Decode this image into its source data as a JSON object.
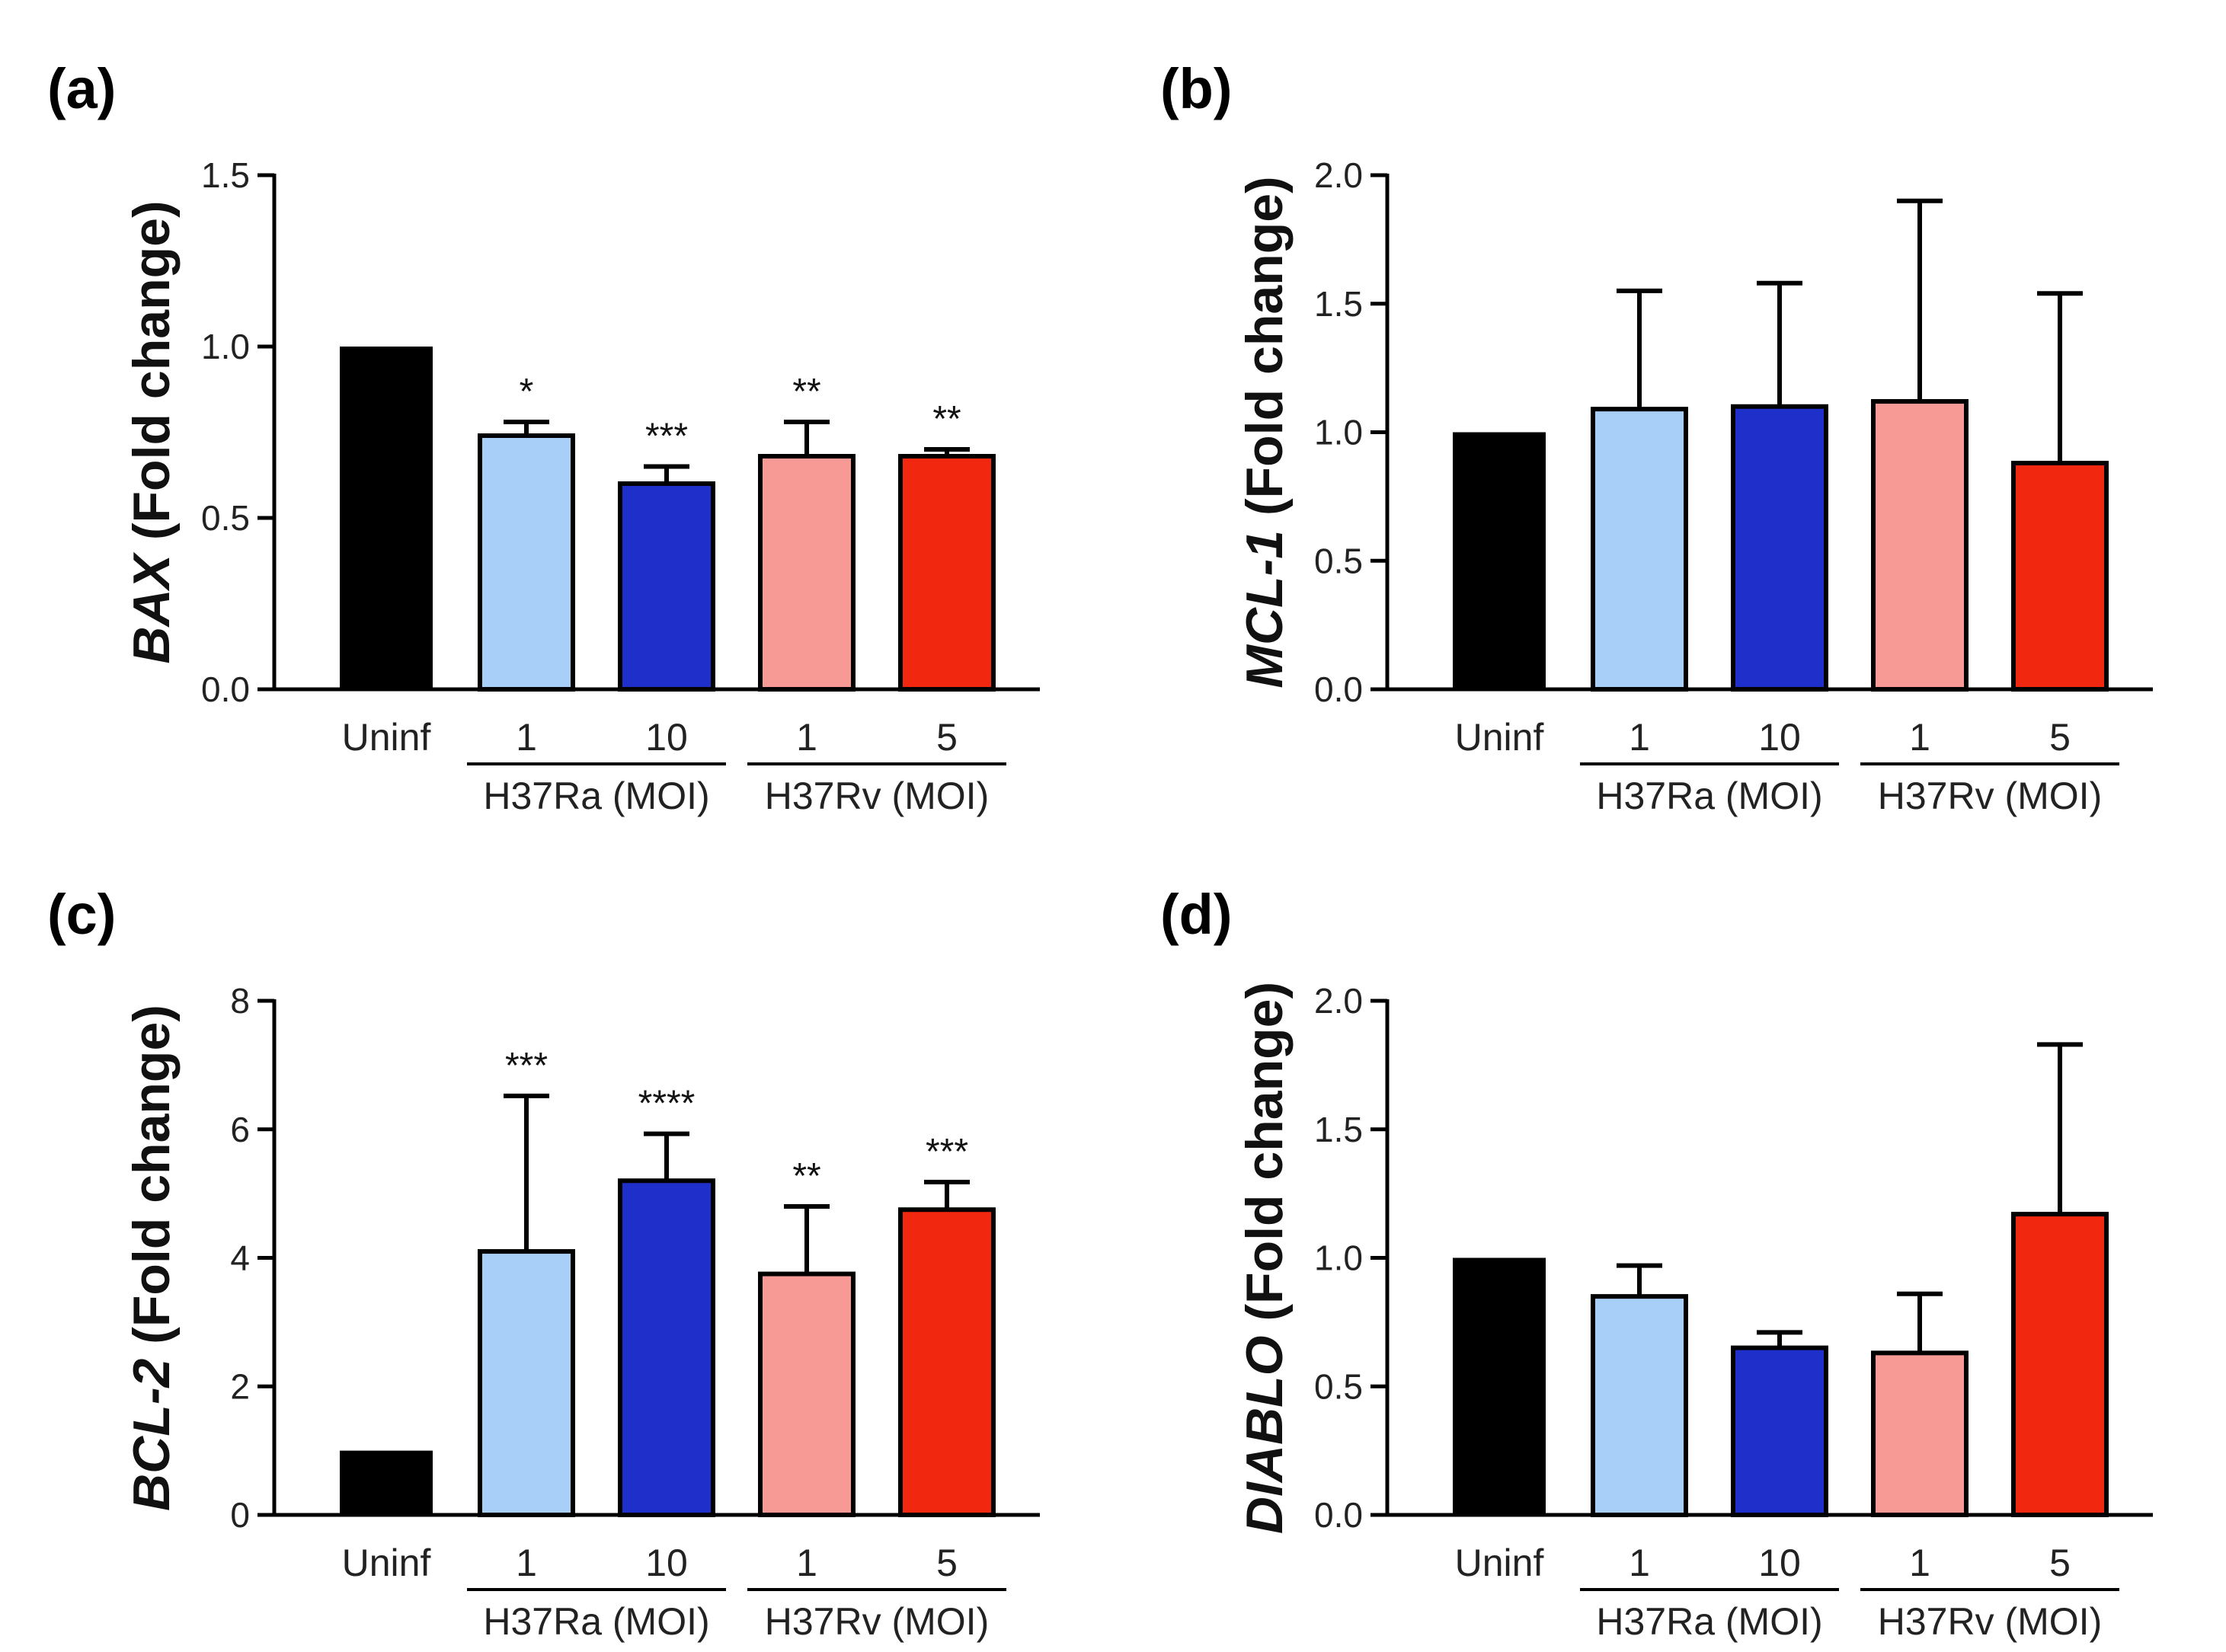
{
  "chart_data": [
    {
      "type": "bar",
      "panel_label": "(a)",
      "ylabel_gene": "BAX",
      "ylabel_suffix": " (Fold change)",
      "ylim": [
        0,
        1.5
      ],
      "yticks": [
        "0.0",
        "0.5",
        "1.0",
        "1.5"
      ],
      "categories": [
        "Uninf",
        "1",
        "10",
        "1",
        "5"
      ],
      "groups": [
        {
          "label": "H37Ra (MOI)",
          "from": 1,
          "to": 2
        },
        {
          "label": "H37Rv (MOI)",
          "from": 3,
          "to": 4
        }
      ],
      "values": [
        1.0,
        0.74,
        0.6,
        0.68,
        0.68
      ],
      "errors": [
        0,
        0.04,
        0.05,
        0.1,
        0.02
      ],
      "colors": [
        "#000000",
        "#a7cff8",
        "#1f2fc9",
        "#f79a96",
        "#f22710"
      ],
      "significance": [
        "",
        "*",
        "***",
        "**",
        "**"
      ]
    },
    {
      "type": "bar",
      "panel_label": "(b)",
      "ylabel_gene": "MCL-1",
      "ylabel_suffix": " (Fold change)",
      "ylim": [
        0,
        2.0
      ],
      "yticks": [
        "0.0",
        "0.5",
        "1.0",
        "1.5",
        "2.0"
      ],
      "categories": [
        "Uninf",
        "1",
        "10",
        "1",
        "5"
      ],
      "groups": [
        {
          "label": "H37Ra (MOI)",
          "from": 1,
          "to": 2
        },
        {
          "label": "H37Rv (MOI)",
          "from": 3,
          "to": 4
        }
      ],
      "values": [
        1.0,
        1.09,
        1.1,
        1.12,
        0.88
      ],
      "errors": [
        0,
        0.46,
        0.48,
        0.78,
        0.66
      ],
      "colors": [
        "#000000",
        "#a7cff8",
        "#1f2fc9",
        "#f79a96",
        "#f22710"
      ],
      "significance": [
        "",
        "",
        "",
        "",
        ""
      ]
    },
    {
      "type": "bar",
      "panel_label": "(c)",
      "ylabel_gene": "BCL-2",
      "ylabel_suffix": " (Fold change)",
      "ylim": [
        0,
        8
      ],
      "yticks": [
        "0",
        "2",
        "4",
        "6",
        "8"
      ],
      "categories": [
        "Uninf",
        "1",
        "10",
        "1",
        "5"
      ],
      "groups": [
        {
          "label": "H37Ra (MOI)",
          "from": 1,
          "to": 2
        },
        {
          "label": "H37Rv (MOI)",
          "from": 3,
          "to": 4
        }
      ],
      "values": [
        1.0,
        4.1,
        5.2,
        3.75,
        4.75
      ],
      "errors": [
        0,
        2.42,
        0.73,
        1.05,
        0.43
      ],
      "colors": [
        "#000000",
        "#a7cff8",
        "#1f2fc9",
        "#f79a96",
        "#f22710"
      ],
      "significance": [
        "",
        "***",
        "****",
        "**",
        "***"
      ]
    },
    {
      "type": "bar",
      "panel_label": "(d)",
      "ylabel_gene": "DIABLO",
      "ylabel_suffix": " (Fold change)",
      "ylim": [
        0,
        2.0
      ],
      "yticks": [
        "0.0",
        "0.5",
        "1.0",
        "1.5",
        "2.0"
      ],
      "categories": [
        "Uninf",
        "1",
        "10",
        "1",
        "5"
      ],
      "groups": [
        {
          "label": "H37Ra (MOI)",
          "from": 1,
          "to": 2
        },
        {
          "label": "H37Rv (MOI)",
          "from": 3,
          "to": 4
        }
      ],
      "values": [
        1.0,
        0.85,
        0.65,
        0.63,
        1.17
      ],
      "errors": [
        0,
        0.12,
        0.06,
        0.23,
        0.66
      ],
      "colors": [
        "#000000",
        "#a7cff8",
        "#1f2fc9",
        "#f79a96",
        "#f22710"
      ],
      "significance": [
        "",
        "",
        "",
        "",
        ""
      ]
    }
  ]
}
